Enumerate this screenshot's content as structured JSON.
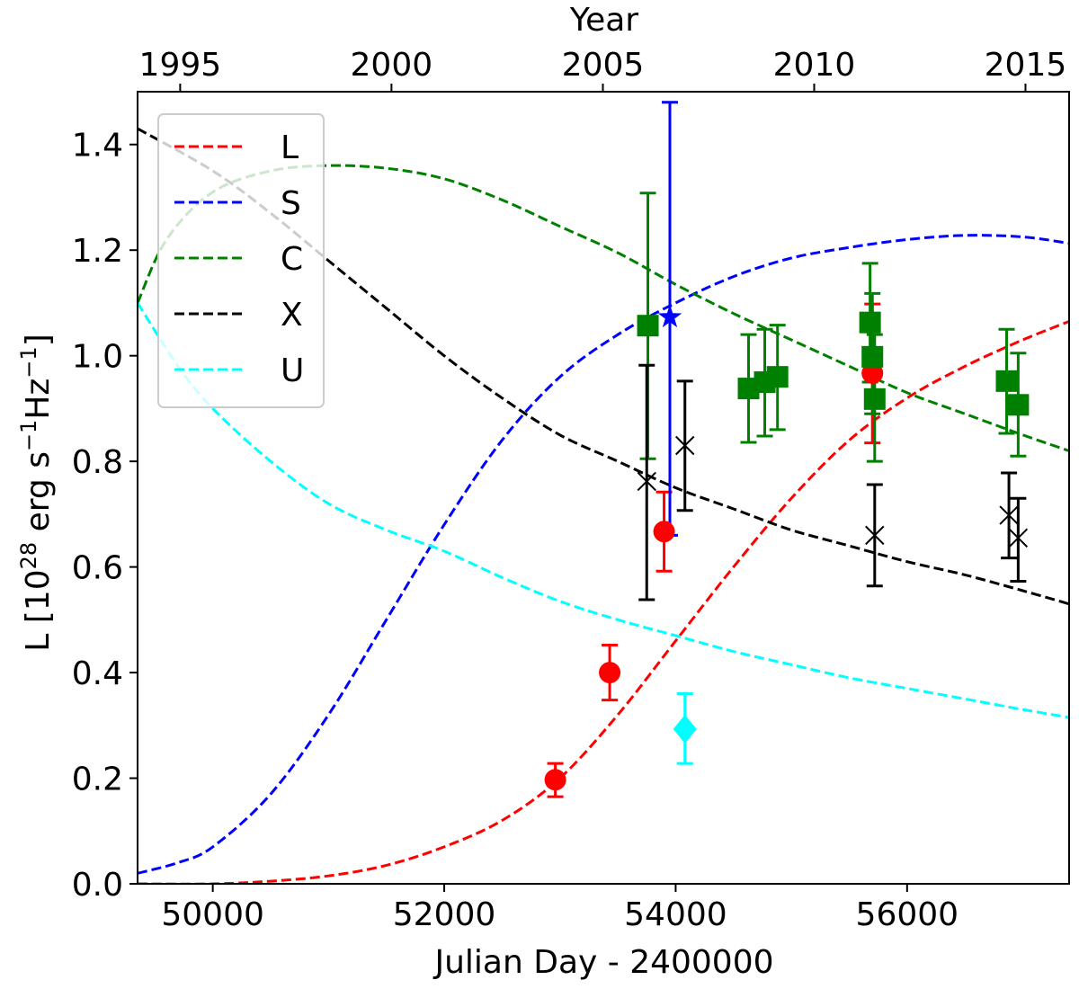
{
  "chart_data": {
    "type": "line",
    "xlabel": "Julian Day - 2400000",
    "ylabel": "L [10^28 erg s^-1 Hz^-1]",
    "ylabel_parts": {
      "base": "L [10",
      "exp1": "28",
      "mid": " erg s",
      "exp2": "−1",
      "mid2": "Hz",
      "exp3": "−1",
      "end": "]"
    },
    "x2label": "Year",
    "xlim": [
      49350,
      57400
    ],
    "ylim": [
      0.0,
      1.5
    ],
    "xticks": [
      50000,
      52000,
      54000,
      56000
    ],
    "xtick_labels": [
      "50000",
      "52000",
      "54000",
      "56000"
    ],
    "yticks": [
      0.0,
      0.2,
      0.4,
      0.6,
      0.8,
      1.0,
      1.2,
      1.4
    ],
    "ytick_labels": [
      "0.0",
      "0.2",
      "0.4",
      "0.6",
      "0.8",
      "1.0",
      "1.2",
      "1.4"
    ],
    "year_ticks": [
      {
        "label": "1995",
        "jd": 49718
      },
      {
        "label": "2000",
        "jd": 51544
      },
      {
        "label": "2005",
        "jd": 53371
      },
      {
        "label": "2010",
        "jd": 55197
      },
      {
        "label": "2015",
        "jd": 57023
      }
    ],
    "legend": {
      "position": "top-left",
      "entries": [
        {
          "label": "L",
          "color": "#ff0000"
        },
        {
          "label": "S",
          "color": "#0000ff"
        },
        {
          "label": "C",
          "color": "#008000"
        },
        {
          "label": "X",
          "color": "#000000"
        },
        {
          "label": "U",
          "color": "#00ffff"
        }
      ]
    },
    "model_curves": [
      {
        "name": "L",
        "color": "#ff0000",
        "x": [
          49350,
          50000,
          50500,
          51000,
          51500,
          52000,
          52500,
          53000,
          53500,
          54000,
          54500,
          55000,
          55500,
          56000,
          56500,
          57000,
          57400
        ],
        "y": [
          0.0,
          0.0,
          0.005,
          0.015,
          0.035,
          0.07,
          0.12,
          0.2,
          0.32,
          0.46,
          0.6,
          0.73,
          0.84,
          0.92,
          0.98,
          1.03,
          1.065
        ]
      },
      {
        "name": "S",
        "color": "#0000ff",
        "x": [
          49350,
          49700,
          50000,
          50500,
          51000,
          51500,
          52000,
          52500,
          53000,
          53500,
          54000,
          54500,
          55000,
          55500,
          56000,
          56500,
          57000,
          57400
        ],
        "y": [
          0.02,
          0.04,
          0.07,
          0.17,
          0.32,
          0.5,
          0.68,
          0.84,
          0.96,
          1.04,
          1.1,
          1.15,
          1.185,
          1.205,
          1.22,
          1.228,
          1.225,
          1.213
        ]
      },
      {
        "name": "C",
        "color": "#008000",
        "x": [
          49350,
          49600,
          50000,
          50500,
          51000,
          51500,
          52000,
          52500,
          53000,
          53500,
          54000,
          54500,
          55000,
          55500,
          56000,
          56500,
          57000,
          57400
        ],
        "y": [
          1.1,
          1.22,
          1.31,
          1.35,
          1.36,
          1.355,
          1.335,
          1.295,
          1.245,
          1.195,
          1.135,
          1.08,
          1.03,
          0.98,
          0.93,
          0.89,
          0.85,
          0.82
        ]
      },
      {
        "name": "X",
        "color": "#000000",
        "x": [
          49350,
          50000,
          50500,
          51000,
          51500,
          52000,
          52500,
          53000,
          53500,
          54000,
          54500,
          55000,
          55500,
          56000,
          56500,
          57000,
          57400
        ],
        "y": [
          1.43,
          1.35,
          1.27,
          1.18,
          1.09,
          1.0,
          0.92,
          0.85,
          0.8,
          0.75,
          0.71,
          0.67,
          0.64,
          0.61,
          0.585,
          0.555,
          0.53
        ]
      },
      {
        "name": "U",
        "color": "#00ffff",
        "x": [
          49350,
          49700,
          50000,
          50500,
          51000,
          51500,
          52000,
          52500,
          53000,
          53500,
          54000,
          54500,
          55000,
          55500,
          56000,
          56500,
          57000,
          57400
        ],
        "y": [
          1.1,
          0.98,
          0.9,
          0.8,
          0.72,
          0.67,
          0.63,
          0.58,
          0.535,
          0.5,
          0.47,
          0.44,
          0.415,
          0.39,
          0.37,
          0.35,
          0.33,
          0.315
        ]
      }
    ],
    "data_series": [
      {
        "name": "L",
        "color": "#ff0000",
        "marker": "circle",
        "points": [
          {
            "x": 52960,
            "y": 0.197,
            "lo": 0.165,
            "hi": 0.228
          },
          {
            "x": 53430,
            "y": 0.4,
            "lo": 0.348,
            "hi": 0.452
          },
          {
            "x": 53900,
            "y": 0.667,
            "lo": 0.592,
            "hi": 0.742
          },
          {
            "x": 55700,
            "y": 0.967,
            "lo": 0.835,
            "hi": 1.098
          }
        ]
      },
      {
        "name": "S",
        "color": "#0000ff",
        "marker": "star",
        "points": [
          {
            "x": 53950,
            "y": 1.073,
            "lo": 0.66,
            "hi": 1.48
          }
        ]
      },
      {
        "name": "C",
        "color": "#008000",
        "marker": "square",
        "points": [
          {
            "x": 53760,
            "y": 1.057,
            "lo": 0.805,
            "hi": 1.308
          },
          {
            "x": 54630,
            "y": 0.938,
            "lo": 0.836,
            "hi": 1.04
          },
          {
            "x": 54770,
            "y": 0.95,
            "lo": 0.848,
            "hi": 1.05
          },
          {
            "x": 54880,
            "y": 0.96,
            "lo": 0.86,
            "hi": 1.058
          },
          {
            "x": 55680,
            "y": 1.063,
            "lo": 0.95,
            "hi": 1.175
          },
          {
            "x": 55700,
            "y": 0.998,
            "lo": 0.89,
            "hi": 1.118
          },
          {
            "x": 55720,
            "y": 0.918,
            "lo": 0.8,
            "hi": 1.04
          },
          {
            "x": 56860,
            "y": 0.952,
            "lo": 0.853,
            "hi": 1.05
          },
          {
            "x": 56960,
            "y": 0.907,
            "lo": 0.81,
            "hi": 1.005
          }
        ]
      },
      {
        "name": "X",
        "color": "#000000",
        "marker": "x",
        "points": [
          {
            "x": 53750,
            "y": 0.762,
            "lo": 0.538,
            "hi": 0.982
          },
          {
            "x": 54080,
            "y": 0.83,
            "lo": 0.707,
            "hi": 0.952
          },
          {
            "x": 55720,
            "y": 0.66,
            "lo": 0.564,
            "hi": 0.756
          },
          {
            "x": 56880,
            "y": 0.698,
            "lo": 0.617,
            "hi": 0.778
          },
          {
            "x": 56960,
            "y": 0.655,
            "lo": 0.573,
            "hi": 0.73
          }
        ]
      },
      {
        "name": "U",
        "color": "#00ffff",
        "marker": "diamond",
        "points": [
          {
            "x": 54080,
            "y": 0.293,
            "lo": 0.228,
            "hi": 0.36
          }
        ]
      }
    ]
  }
}
